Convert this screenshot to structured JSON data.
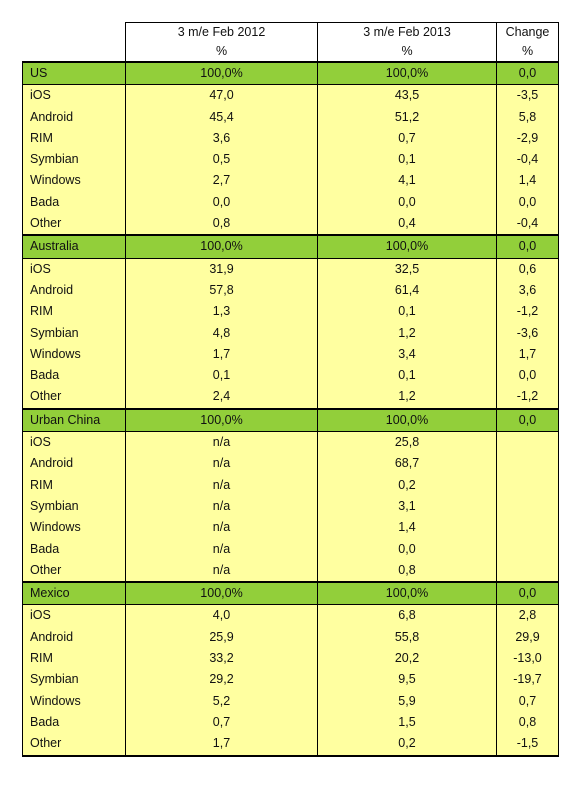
{
  "header": {
    "col1_line1": "3 m/e Feb 2012",
    "col1_line2": "%",
    "col2_line1": "3 m/e Feb 2013",
    "col2_line2": "%",
    "col3_line1": "Change",
    "col3_line2": "%"
  },
  "sections": [
    {
      "region": [
        "US",
        "100,0%",
        "100,0%",
        "0,0"
      ],
      "rows": [
        [
          "iOS",
          "47,0",
          "43,5",
          "-3,5"
        ],
        [
          "Android",
          "45,4",
          "51,2",
          "5,8"
        ],
        [
          "RIM",
          "3,6",
          "0,7",
          "-2,9"
        ],
        [
          "Symbian",
          "0,5",
          "0,1",
          "-0,4"
        ],
        [
          "Windows",
          "2,7",
          "4,1",
          "1,4"
        ],
        [
          "Bada",
          "0,0",
          "0,0",
          "0,0"
        ],
        [
          "Other",
          "0,8",
          "0,4",
          "-0,4"
        ]
      ]
    },
    {
      "region": [
        "Australia",
        "100,0%",
        "100,0%",
        "0,0"
      ],
      "rows": [
        [
          "iOS",
          "31,9",
          "32,5",
          "0,6"
        ],
        [
          "Android",
          "57,8",
          "61,4",
          "3,6"
        ],
        [
          "RIM",
          "1,3",
          "0,1",
          "-1,2"
        ],
        [
          "Symbian",
          "4,8",
          "1,2",
          "-3,6"
        ],
        [
          "Windows",
          "1,7",
          "3,4",
          "1,7"
        ],
        [
          "Bada",
          "0,1",
          "0,1",
          "0,0"
        ],
        [
          "Other",
          "2,4",
          "1,2",
          "-1,2"
        ]
      ]
    },
    {
      "region": [
        "Urban China",
        "100,0%",
        "100,0%",
        "0,0"
      ],
      "rows": [
        [
          "iOS",
          "n/a",
          "25,8",
          ""
        ],
        [
          "Android",
          "n/a",
          "68,7",
          ""
        ],
        [
          "RIM",
          "n/a",
          "0,2",
          ""
        ],
        [
          "Symbian",
          "n/a",
          "3,1",
          ""
        ],
        [
          "Windows",
          "n/a",
          "1,4",
          ""
        ],
        [
          "Bada",
          "n/a",
          "0,0",
          ""
        ],
        [
          "Other",
          "n/a",
          "0,8",
          ""
        ]
      ]
    },
    {
      "region": [
        "Mexico",
        "100,0%",
        "100,0%",
        "0,0"
      ],
      "rows": [
        [
          "iOS",
          "4,0",
          "6,8",
          "2,8"
        ],
        [
          "Android",
          "25,9",
          "55,8",
          "29,9"
        ],
        [
          "RIM",
          "33,2",
          "20,2",
          "-13,0"
        ],
        [
          "Symbian",
          "29,2",
          "9,5",
          "-19,7"
        ],
        [
          "Windows",
          "5,2",
          "5,9",
          "0,7"
        ],
        [
          "Bada",
          "0,7",
          "1,5",
          "0,8"
        ],
        [
          "Other",
          "1,7",
          "0,2",
          "-1,5"
        ]
      ]
    }
  ],
  "colors": {
    "region_row": "#92cf3a",
    "data_row": "#ffffa0"
  }
}
